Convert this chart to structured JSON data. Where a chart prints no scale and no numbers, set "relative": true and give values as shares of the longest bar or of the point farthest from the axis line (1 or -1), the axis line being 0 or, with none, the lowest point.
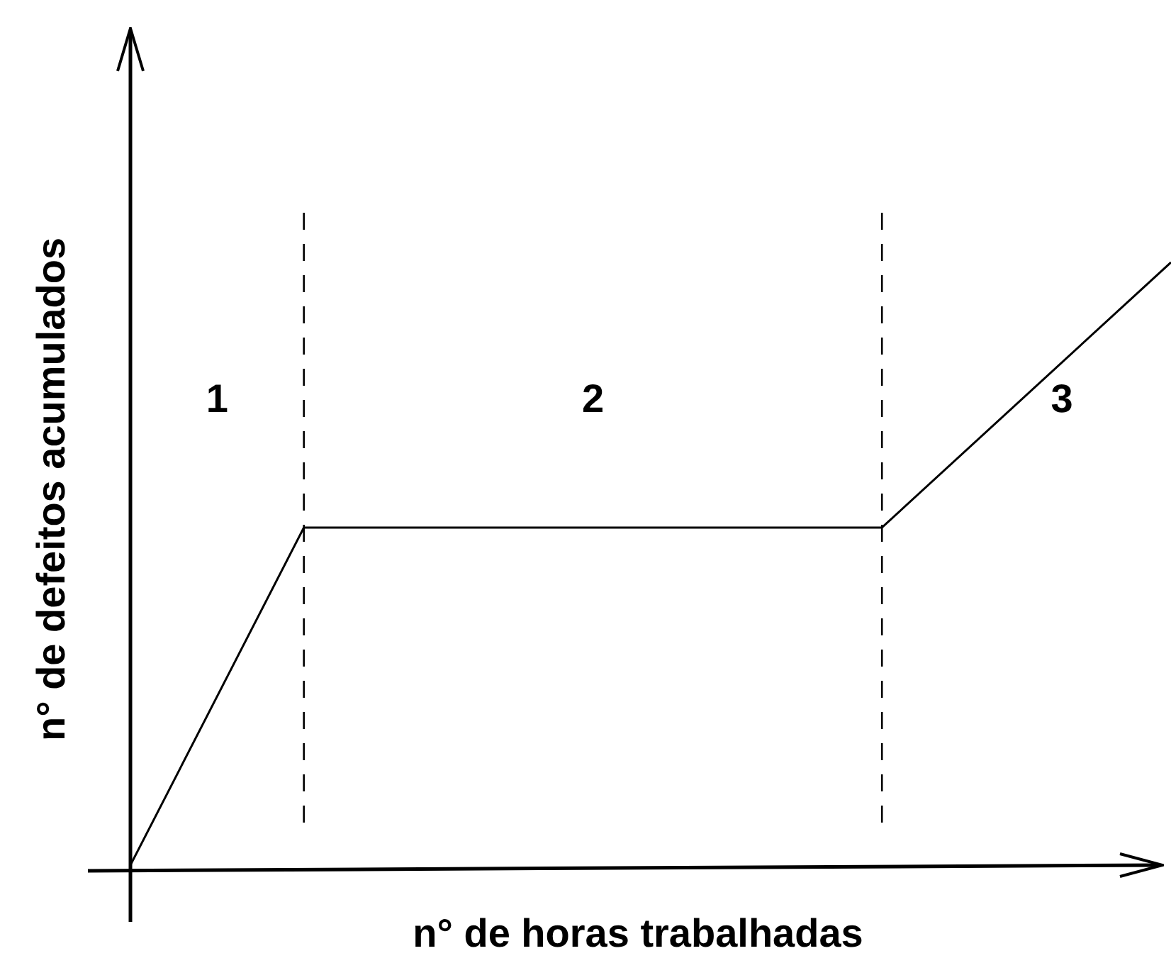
{
  "chart_data": {
    "type": "line",
    "relative": true,
    "xlabel": "n° de horas trabalhadas",
    "ylabel": "n° de defeitos acumulados",
    "categories": [
      null,
      null,
      null,
      null,
      null,
      null,
      null,
      null,
      null,
      null,
      null,
      null,
      null,
      null,
      null,
      null,
      null,
      null,
      null
    ],
    "series": [
      {
        "color": "#000000",
        "values": [
          0,
          null,
          null,
          0.56,
          null,
          null,
          null,
          null,
          null,
          null,
          null,
          null,
          null,
          0.56,
          null,
          null,
          null,
          null,
          1
        ]
      }
    ],
    "marker": "none",
    "line_style": "solid",
    "legend": false,
    "annotations": [
      "1",
      "2",
      "3"
    ]
  }
}
